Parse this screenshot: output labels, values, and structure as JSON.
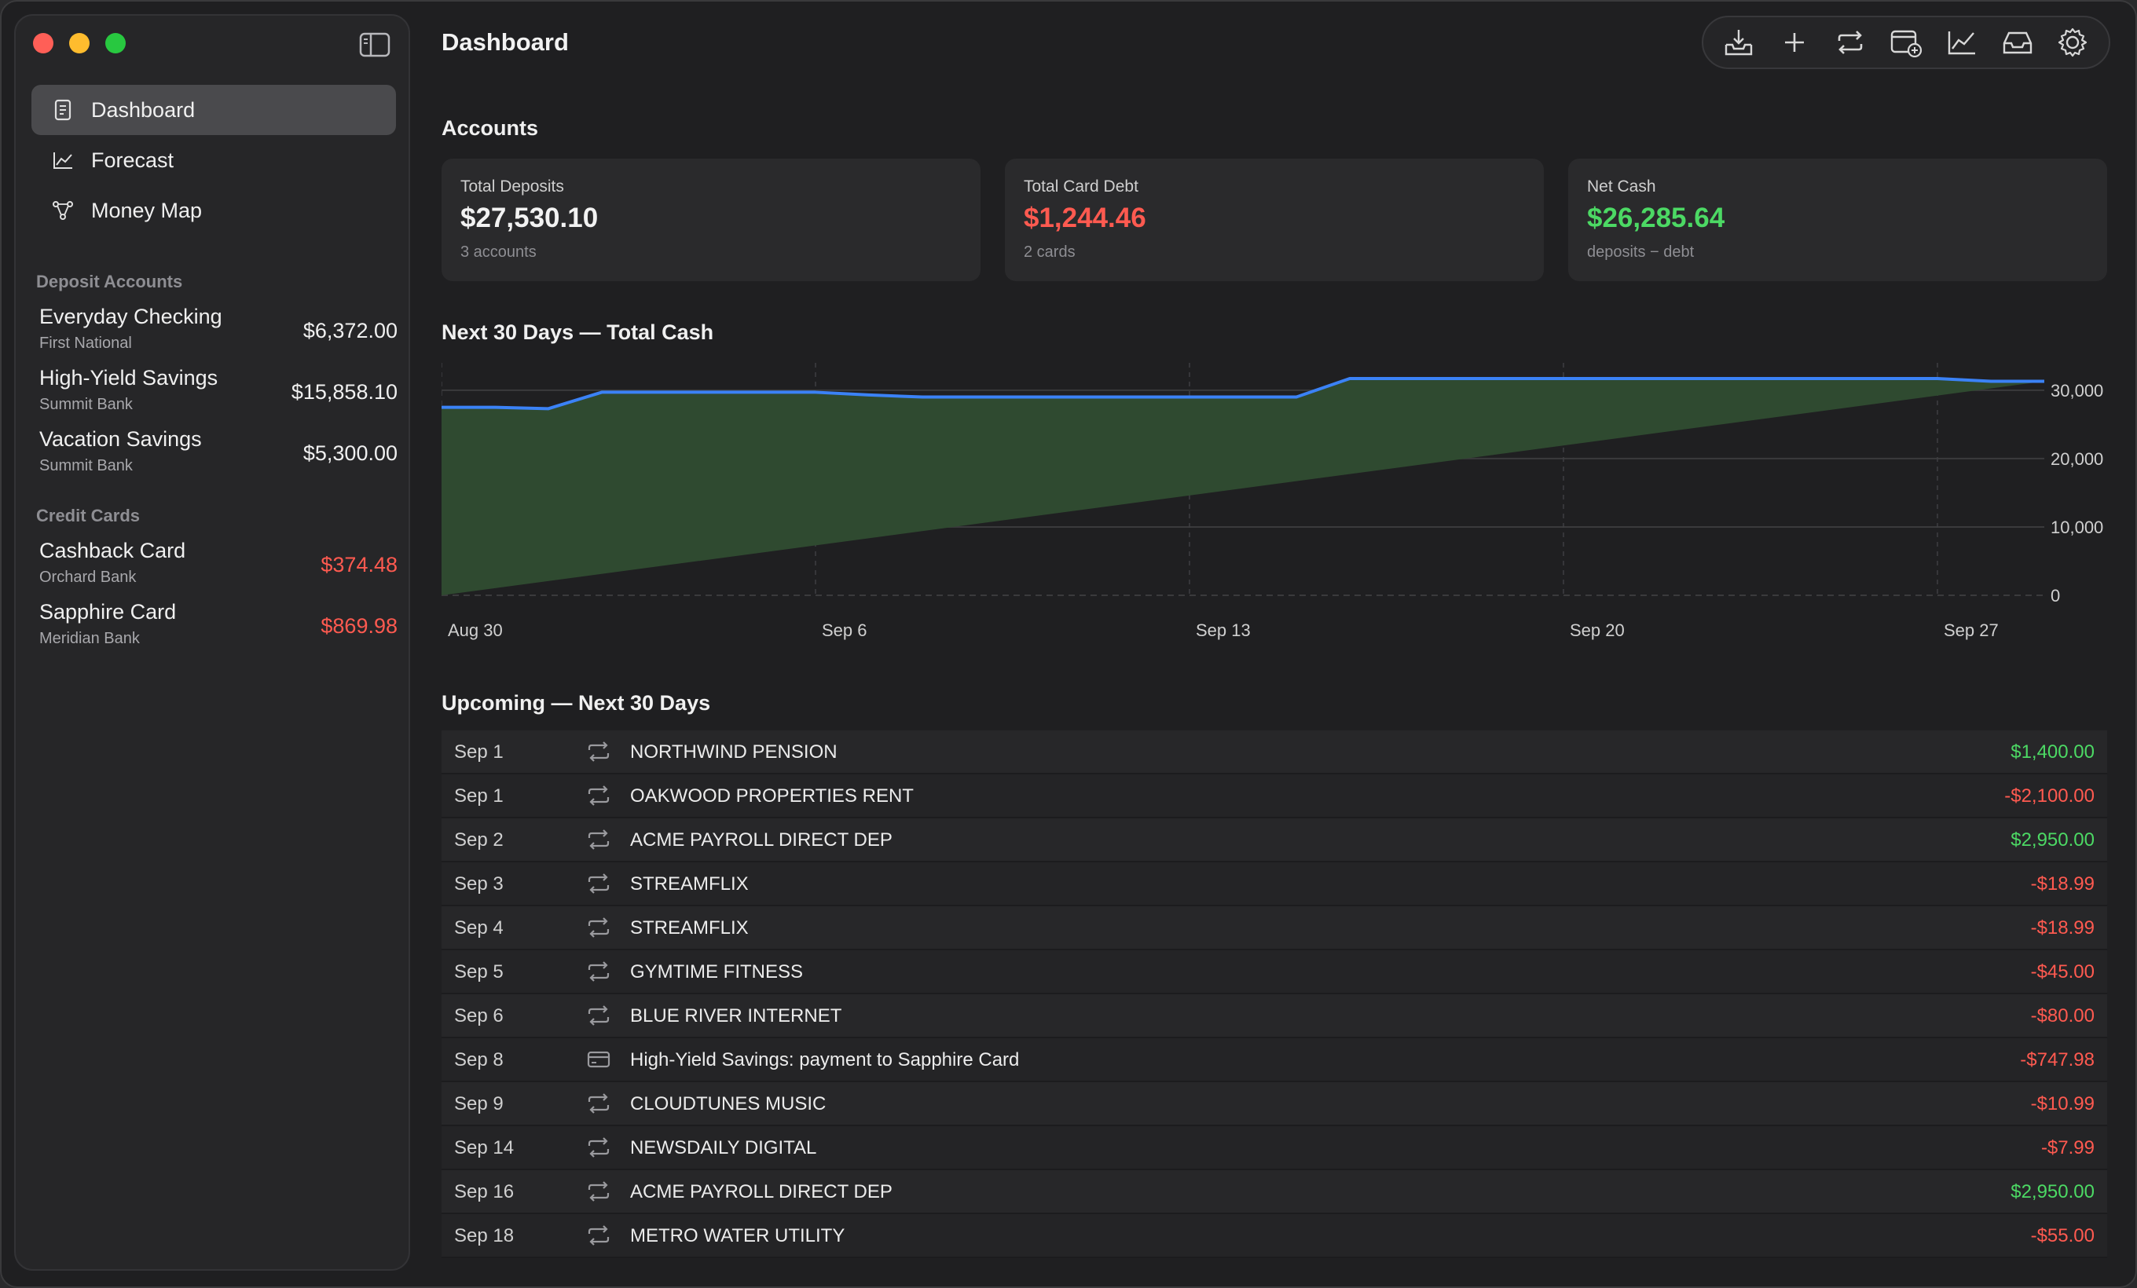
{
  "sidebar": {
    "nav": [
      {
        "label": "Dashboard",
        "icon": "dashboard-icon",
        "active": true
      },
      {
        "label": "Forecast",
        "icon": "chart-line-icon",
        "active": false
      },
      {
        "label": "Money Map",
        "icon": "network-icon",
        "active": false
      }
    ],
    "deposit_header": "Deposit Accounts",
    "deposits": [
      {
        "name": "Everyday Checking",
        "bank": "First National",
        "balance": "$6,372.00"
      },
      {
        "name": "High-Yield Savings",
        "bank": "Summit Bank",
        "balance": "$15,858.10"
      },
      {
        "name": "Vacation Savings",
        "bank": "Summit Bank",
        "balance": "$5,300.00"
      }
    ],
    "credit_header": "Credit Cards",
    "cards": [
      {
        "name": "Cashback Card",
        "bank": "Orchard Bank",
        "balance": "$374.48"
      },
      {
        "name": "Sapphire Card",
        "bank": "Meridian Bank",
        "balance": "$869.98"
      }
    ]
  },
  "header": {
    "title": "Dashboard"
  },
  "toolbar": [
    "import-icon",
    "add-icon",
    "repeat-icon",
    "calendar-add-icon",
    "chart-icon",
    "inbox-icon",
    "settings-icon"
  ],
  "accounts": {
    "heading": "Accounts",
    "cards": [
      {
        "label": "Total Deposits",
        "value": "$27,530.10",
        "sub": "3 accounts"
      },
      {
        "label": "Total Card Debt",
        "value": "$1,244.46",
        "sub": "2 cards"
      },
      {
        "label": "Net Cash",
        "value": "$26,285.64",
        "sub": "deposits − debt"
      }
    ]
  },
  "forecast_heading": "Next 30 Days — Total Cash",
  "chart_data": {
    "type": "area",
    "x": [
      "Aug 30",
      "Aug 31",
      "Sep 1",
      "Sep 2",
      "Sep 3",
      "Sep 4",
      "Sep 5",
      "Sep 6",
      "Sep 7",
      "Sep 8",
      "Sep 9",
      "Sep 10",
      "Sep 11",
      "Sep 12",
      "Sep 13",
      "Sep 14",
      "Sep 15",
      "Sep 16",
      "Sep 17",
      "Sep 18",
      "Sep 19",
      "Sep 20",
      "Sep 21",
      "Sep 22",
      "Sep 23",
      "Sep 24",
      "Sep 25",
      "Sep 26",
      "Sep 27",
      "Sep 28",
      "Sep 29"
    ],
    "x_ticks": [
      "Aug 30",
      "Sep 6",
      "Sep 13",
      "Sep 20",
      "Sep 27"
    ],
    "y_ticks": [
      0,
      10000,
      20000,
      30000
    ],
    "y_tick_labels": [
      "0",
      "10,000",
      "20,000",
      "30,000"
    ],
    "ylim": [
      0,
      34000
    ],
    "series": [
      {
        "values": [
          27500,
          27500,
          27300,
          29700,
          29700,
          29700,
          29700,
          29700,
          29300,
          29000,
          29000,
          29000,
          29000,
          29000,
          29000,
          29000,
          29000,
          31700,
          31700,
          31700,
          31700,
          31700,
          31700,
          31700,
          31700,
          31700,
          31700,
          31700,
          31700,
          31300,
          31300
        ]
      }
    ],
    "area_baseline_ramp": true,
    "grid": true,
    "title": "",
    "xlabel": "",
    "ylabel": ""
  },
  "upcoming": {
    "heading": "Upcoming — Next 30 Days",
    "rows": [
      {
        "date": "Sep 1",
        "icon": "repeat-icon",
        "name": "NORTHWIND PENSION",
        "amount": "$1,400.00",
        "sign": "pos"
      },
      {
        "date": "Sep 1",
        "icon": "repeat-icon",
        "name": "OAKWOOD PROPERTIES RENT",
        "amount": "-$2,100.00",
        "sign": "neg"
      },
      {
        "date": "Sep 2",
        "icon": "repeat-icon",
        "name": "ACME PAYROLL DIRECT DEP",
        "amount": "$2,950.00",
        "sign": "pos"
      },
      {
        "date": "Sep 3",
        "icon": "repeat-icon",
        "name": "STREAMFLIX",
        "amount": "-$18.99",
        "sign": "neg"
      },
      {
        "date": "Sep 4",
        "icon": "repeat-icon",
        "name": "STREAMFLIX",
        "amount": "-$18.99",
        "sign": "neg"
      },
      {
        "date": "Sep 5",
        "icon": "repeat-icon",
        "name": "GYMTIME FITNESS",
        "amount": "-$45.00",
        "sign": "neg"
      },
      {
        "date": "Sep 6",
        "icon": "repeat-icon",
        "name": "BLUE RIVER INTERNET",
        "amount": "-$80.00",
        "sign": "neg"
      },
      {
        "date": "Sep 8",
        "icon": "credit-card-icon",
        "name": "High-Yield Savings: payment to Sapphire Card",
        "amount": "-$747.98",
        "sign": "neg"
      },
      {
        "date": "Sep 9",
        "icon": "repeat-icon",
        "name": "CLOUDTUNES MUSIC",
        "amount": "-$10.99",
        "sign": "neg"
      },
      {
        "date": "Sep 14",
        "icon": "repeat-icon",
        "name": "NEWSDAILY DIGITAL",
        "amount": "-$7.99",
        "sign": "neg"
      },
      {
        "date": "Sep 16",
        "icon": "repeat-icon",
        "name": "ACME PAYROLL DIRECT DEP",
        "amount": "$2,950.00",
        "sign": "pos"
      },
      {
        "date": "Sep 18",
        "icon": "repeat-icon",
        "name": "METRO WATER UTILITY",
        "amount": "-$55.00",
        "sign": "neg"
      }
    ]
  },
  "colors": {
    "accent_line": "#3b82f6",
    "area_fill": "#2f4a30",
    "positive": "#4cd964",
    "negative": "#ff5a50"
  }
}
